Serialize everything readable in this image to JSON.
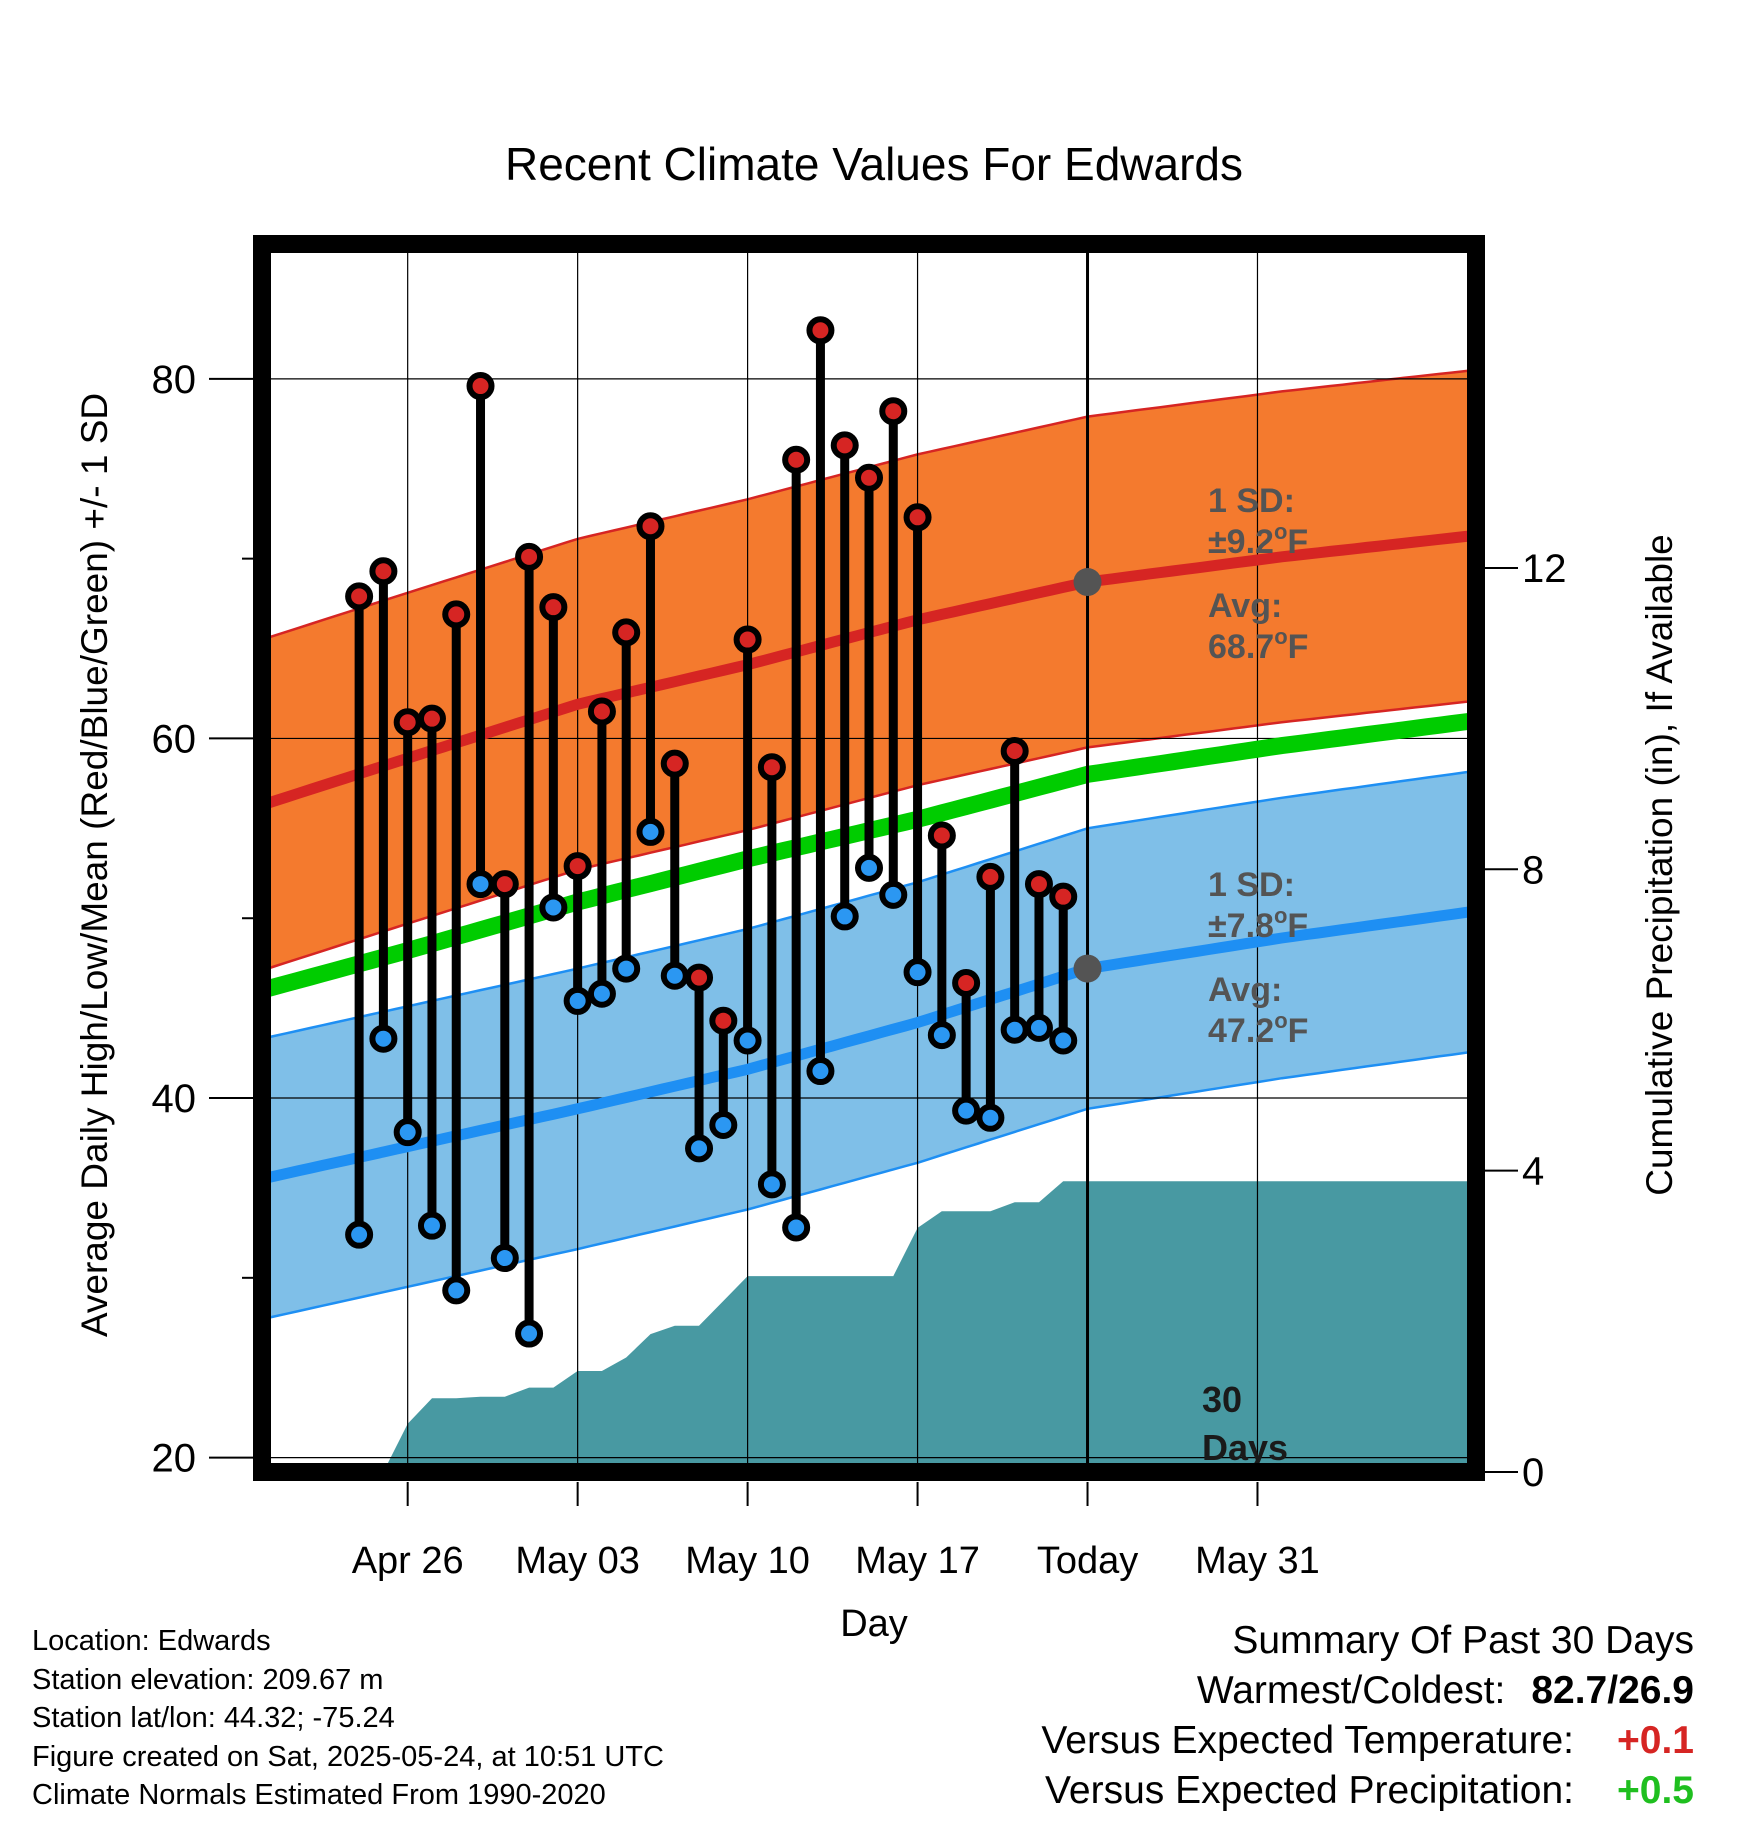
{
  "chart_data": {
    "type": "line",
    "title": "Recent Climate Values For Edwards",
    "xlabel": "Day",
    "ylabel": "Average Daily High/Low/Mean (Red/Blue/Green) +/- 1 SD",
    "y2label": "Cumulative Precipitation (in), If Available",
    "ylim": [
      19.2,
      87.5
    ],
    "y_ticks": [
      20,
      40,
      60,
      80
    ],
    "y2lim": [
      0,
      16.3
    ],
    "y2_ticks": [
      0,
      4,
      8,
      12
    ],
    "x_range_days": [
      -34,
      16
    ],
    "x_tick_labels": [
      {
        "day": -28,
        "label": "Apr 26"
      },
      {
        "day": -21,
        "label": "May 03"
      },
      {
        "day": -14,
        "label": "May 10"
      },
      {
        "day": -7,
        "label": "May 17"
      },
      {
        "day": 0,
        "label": "Today"
      },
      {
        "day": 7,
        "label": "May 31"
      }
    ],
    "grid": true,
    "colors": {
      "high_band": "#f47a2e",
      "high_line": "#d62523",
      "low_band": "#7fbfe8",
      "low_line": "#1e8ff3",
      "mean_line": "#00cc00",
      "precip_area": "#4899a2",
      "high_dot": "#d62523",
      "low_dot": "#2b97f2",
      "normal_marker": "#545454",
      "annotation": "#545454",
      "positive_temp": "#d62523",
      "positive_precip": "#1fbf1f"
    },
    "normals": {
      "days": [
        -34,
        -28,
        -21,
        -14,
        -7,
        0,
        8,
        16
      ],
      "high_avg": [
        56.3,
        58.9,
        61.9,
        64.1,
        66.6,
        68.7,
        70.1,
        71.3
      ],
      "high_sd": 9.2,
      "low_avg": [
        35.5,
        37.3,
        39.4,
        41.6,
        44.2,
        47.2,
        48.9,
        50.4
      ],
      "low_sd": 7.8,
      "mean": [
        46.0,
        48.2,
        50.9,
        53.3,
        55.5,
        58.0,
        59.6,
        61.0
      ]
    },
    "daily": {
      "days": [
        -30,
        -29,
        -28,
        -27,
        -26,
        -25,
        -24,
        -23,
        -22,
        -21,
        -20,
        -19,
        -18,
        -17,
        -16,
        -15,
        -14,
        -13,
        -12,
        -11,
        -10,
        -9,
        -8,
        -7,
        -6,
        -5,
        -4,
        -3,
        -2,
        -1
      ],
      "highs": [
        67.9,
        69.3,
        60.9,
        61.1,
        66.9,
        79.6,
        51.9,
        70.1,
        67.3,
        52.9,
        61.5,
        65.9,
        71.8,
        58.6,
        46.7,
        44.3,
        65.5,
        58.4,
        75.5,
        82.7,
        76.3,
        74.5,
        78.2,
        72.3,
        54.6,
        46.4,
        52.3,
        59.3,
        51.9,
        51.2
      ],
      "lows": [
        32.4,
        43.3,
        38.1,
        32.9,
        29.3,
        51.9,
        31.1,
        26.9,
        50.6,
        45.4,
        45.8,
        47.2,
        54.8,
        46.8,
        37.2,
        38.5,
        43.2,
        35.2,
        32.8,
        41.5,
        50.1,
        52.8,
        51.3,
        47.0,
        43.5,
        39.3,
        38.9,
        43.8,
        43.9,
        43.2
      ]
    },
    "precipitation": {
      "days": [
        -34,
        -29,
        -28,
        -27,
        -26,
        -25,
        -24,
        -23,
        -22,
        -21,
        -20,
        -19,
        -18,
        -17,
        -16,
        -15,
        -14,
        -13,
        -12,
        -11,
        -10,
        -9,
        -8,
        -7,
        -6,
        -5,
        -4,
        -3,
        -2,
        -1,
        0,
        16
      ],
      "cumulative": [
        0,
        0,
        0.64,
        0.98,
        0.98,
        1.0,
        1.0,
        1.12,
        1.12,
        1.34,
        1.34,
        1.52,
        1.83,
        1.94,
        1.94,
        2.27,
        2.6,
        2.6,
        2.6,
        2.6,
        2.6,
        2.6,
        2.6,
        3.24,
        3.46,
        3.46,
        3.46,
        3.58,
        3.58,
        3.86,
        3.86,
        3.86
      ]
    },
    "annotations": {
      "high_sd_label": "1 SD:",
      "high_sd_value": "±9.2",
      "high_avg_label": "Avg:",
      "high_avg_value": "68.7",
      "low_sd_label": "1 SD:",
      "low_sd_value": "±7.8",
      "low_avg_label": "Avg:",
      "low_avg_value": "47.2",
      "unit_degree": "o",
      "unit_letter": "F",
      "days_number": "30",
      "days_word": "Days"
    }
  },
  "station": {
    "location": "Location: Edwards",
    "elevation": "Station elevation: 209.67 m",
    "latlon": "Station lat/lon: 44.32; -75.24",
    "created": "Figure created on Sat, 2025-05-24, at 10:51 UTC",
    "normals": "Climate Normals Estimated From 1990-2020"
  },
  "summary": {
    "title": "Summary Of Past 30 Days",
    "warm_cold_label": "Warmest/Coldest:",
    "warm_cold_value": "82.7/26.9",
    "temp_label": "Versus Expected Temperature:",
    "temp_value": "+0.1",
    "precip_label": "Versus Expected Precipitation:",
    "precip_value": "+0.5"
  }
}
